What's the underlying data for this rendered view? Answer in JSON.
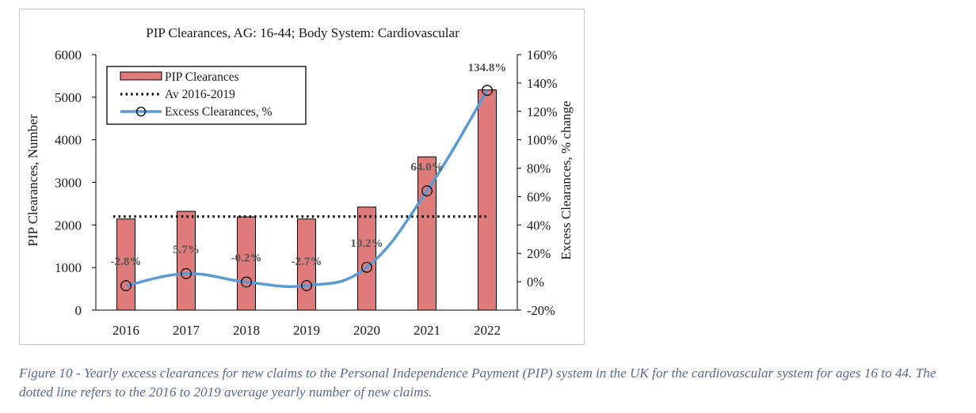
{
  "chart_data": {
    "type": "bar",
    "title": "PIP Clearances, AG: 16-44; Body System: Cardiovascular",
    "categories": [
      "2016",
      "2017",
      "2018",
      "2019",
      "2020",
      "2021",
      "2022"
    ],
    "ylabel": "PIP Clearances, Number",
    "y2label": "Excess Clearances, % change",
    "ylim": [
      0,
      6000
    ],
    "yticks": [
      "0",
      "1000",
      "2000",
      "3000",
      "4000",
      "5000",
      "6000"
    ],
    "y2lim": [
      -20,
      160
    ],
    "y2ticks": [
      "-20%",
      "0%",
      "20%",
      "40%",
      "60%",
      "80%",
      "100%",
      "120%",
      "140%",
      "160%"
    ],
    "grid": false,
    "legend_position": "top-left",
    "series": [
      {
        "name": "PIP Clearances",
        "kind": "bar",
        "axis": "left",
        "color": "#e07b7b",
        "values": [
          2140,
          2320,
          2190,
          2140,
          2420,
          3600,
          5170
        ]
      },
      {
        "name": "Av 2016-2019",
        "kind": "dotted-line",
        "axis": "left",
        "color": "#000000",
        "values": [
          2198,
          2198,
          2198,
          2198,
          2198,
          2198,
          2198
        ]
      },
      {
        "name": "Excess Clearances, %",
        "kind": "line-markers",
        "axis": "right",
        "color": "#5b9bd5",
        "values": [
          -2.8,
          5.7,
          -0.2,
          -2.7,
          10.2,
          64.0,
          134.8
        ],
        "labels": [
          "-2.8%",
          "5.7%",
          "-0.2%",
          "-2.7%",
          "10.2%",
          "64.0%",
          "134.8%"
        ]
      }
    ]
  },
  "caption": "Figure 10 - Yearly excess clearances for new claims to the Personal Independence Payment (PIP) system in the UK for the cardiovascular system for ages 16 to 44. The dotted line refers to the 2016 to 2019 average yearly number of new claims."
}
